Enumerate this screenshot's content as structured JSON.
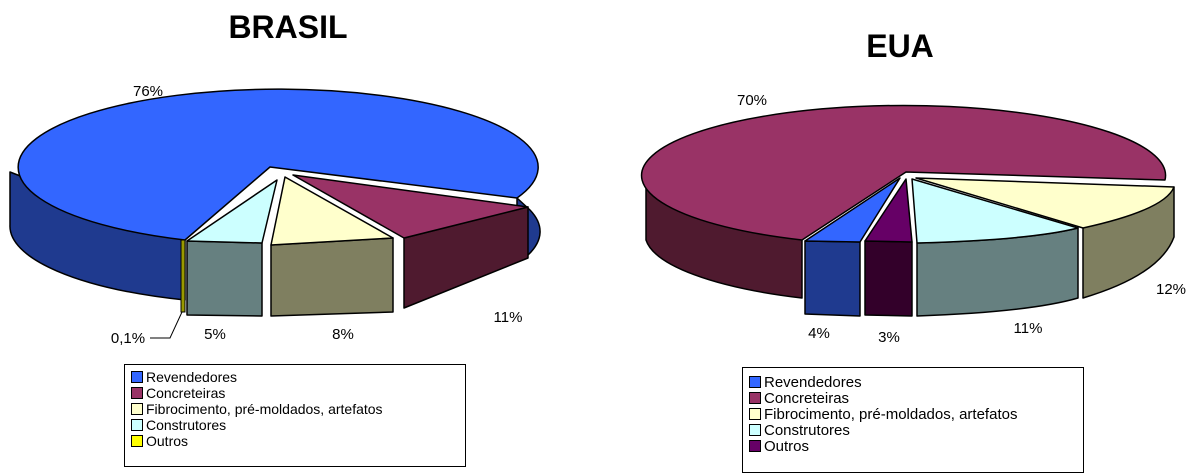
{
  "chart_data": [
    {
      "type": "pie",
      "title": "BRASIL",
      "categories": [
        "Revendedores",
        "Concreteiras",
        "Fibrocimento, pré-moldados, artefatos",
        "Construtores",
        "Outros"
      ],
      "values": [
        76,
        11,
        8,
        5,
        0.1
      ],
      "data_labels": [
        "76%",
        "11%",
        "8%",
        "5%",
        "0,1%"
      ],
      "colors": [
        "#3366ff",
        "#993366",
        "#ffffcc",
        "#ccffff",
        "#ffff00"
      ],
      "legend_position": "bottom"
    },
    {
      "type": "pie",
      "title": "EUA",
      "categories": [
        "Revendedores",
        "Concreteiras",
        "Fibrocimento, pré-moldados, artefatos",
        "Construtores",
        "Outros"
      ],
      "values": [
        4,
        70,
        12,
        11,
        3
      ],
      "data_labels": [
        "4%",
        "70%",
        "12%",
        "11%",
        "3%"
      ],
      "colors": [
        "#3366ff",
        "#993366",
        "#ffffcc",
        "#ccffff",
        "#660066"
      ],
      "legend_position": "bottom"
    }
  ]
}
